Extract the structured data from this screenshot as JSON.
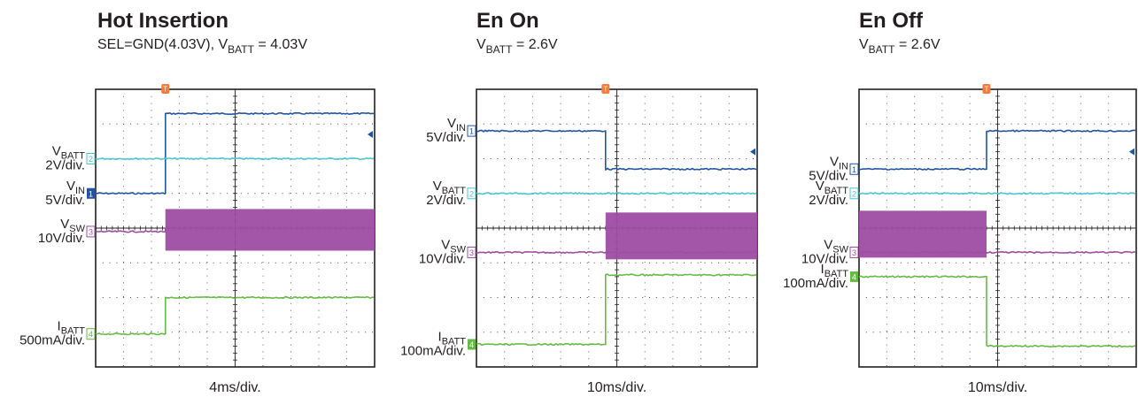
{
  "chart_data": [
    {
      "type": "line",
      "title": "Hot Insertion",
      "subtitle": {
        "prefix": "SEL=GND(4.03V), V",
        "sub": "BATT",
        "suffix": " = 4.03V"
      },
      "xlabel": "4ms/div.",
      "x_divisions": 10,
      "y_divisions": 8,
      "trigger_div": 2.5,
      "edge_div": 2.5,
      "trigger_marker": "T",
      "series": [
        {
          "channel": "1",
          "main": "V",
          "sub": "IN",
          "scale": "5V/div.",
          "color": "#2155a3",
          "marker_style": "filled",
          "before": 5.0,
          "after": 7.3
        },
        {
          "channel": "2",
          "main": "V",
          "sub": "BATT",
          "scale": "2V/div.",
          "color": "#4cc6d3",
          "marker_style": "outline",
          "before": 6.0,
          "after": 6.0
        },
        {
          "channel": "3",
          "main": "V",
          "sub": "SW",
          "scale": "10V/div.",
          "color": "#9e4da3",
          "marker_style": "outline",
          "before": 3.9,
          "after": 4.0,
          "switching_after": [
            3.35,
            4.55
          ]
        },
        {
          "channel": "4",
          "main": "I",
          "sub": "BATT",
          "scale": "500mA/div.",
          "color": "#66bb44",
          "marker_style": "outline",
          "before": 0.95,
          "after": 2.0
        }
      ]
    },
    {
      "type": "line",
      "title": "En On",
      "subtitle": {
        "prefix": "V",
        "sub": "BATT",
        "suffix": " = 2.6V"
      },
      "xlabel": "10ms/div.",
      "x_divisions": 10,
      "y_divisions": 8,
      "trigger_div": 4.6,
      "edge_div": 4.6,
      "trigger_marker": "T",
      "series": [
        {
          "channel": "1",
          "main": "V",
          "sub": "IN",
          "scale": "5V/div.",
          "color": "#2155a3",
          "marker_style": "outline",
          "before": 6.8,
          "after": 5.7
        },
        {
          "channel": "2",
          "main": "V",
          "sub": "BATT",
          "scale": "2V/div.",
          "color": "#4cc6d3",
          "marker_style": "outline",
          "before": 5.0,
          "after": 5.0
        },
        {
          "channel": "3",
          "main": "V",
          "sub": "SW",
          "scale": "10V/div.",
          "color": "#9e4da3",
          "marker_style": "outline",
          "before": 3.3,
          "after": 3.3,
          "switching_after": [
            3.1,
            4.45
          ]
        },
        {
          "channel": "4",
          "main": "I",
          "sub": "BATT",
          "scale": "100mA/div.",
          "color": "#66bb44",
          "marker_style": "filled",
          "before": 0.65,
          "after": 2.65
        }
      ]
    },
    {
      "type": "line",
      "title": "En Off",
      "subtitle": {
        "prefix": "V",
        "sub": "BATT",
        "suffix": " = 2.6V"
      },
      "xlabel": "10ms/div.",
      "x_divisions": 10,
      "y_divisions": 8,
      "trigger_div": 4.6,
      "edge_div": 4.6,
      "trigger_marker": "T",
      "series": [
        {
          "channel": "1",
          "main": "V",
          "sub": "IN",
          "scale": "5V/div.",
          "color": "#2155a3",
          "marker_style": "outline",
          "before": 5.7,
          "after": 6.8
        },
        {
          "channel": "2",
          "main": "V",
          "sub": "BATT",
          "scale": "2V/div.",
          "color": "#4cc6d3",
          "marker_style": "outline",
          "before": 5.0,
          "after": 5.0
        },
        {
          "channel": "3",
          "main": "V",
          "sub": "SW",
          "scale": "10V/div.",
          "color": "#9e4da3",
          "marker_style": "outline",
          "before": 3.3,
          "after": 3.3,
          "switching_before": [
            3.15,
            4.5
          ]
        },
        {
          "channel": "4",
          "main": "I",
          "sub": "BATT",
          "scale": "100mA/div.",
          "color": "#66bb44",
          "marker_style": "filled",
          "before": 2.6,
          "after": 0.6
        }
      ]
    }
  ]
}
